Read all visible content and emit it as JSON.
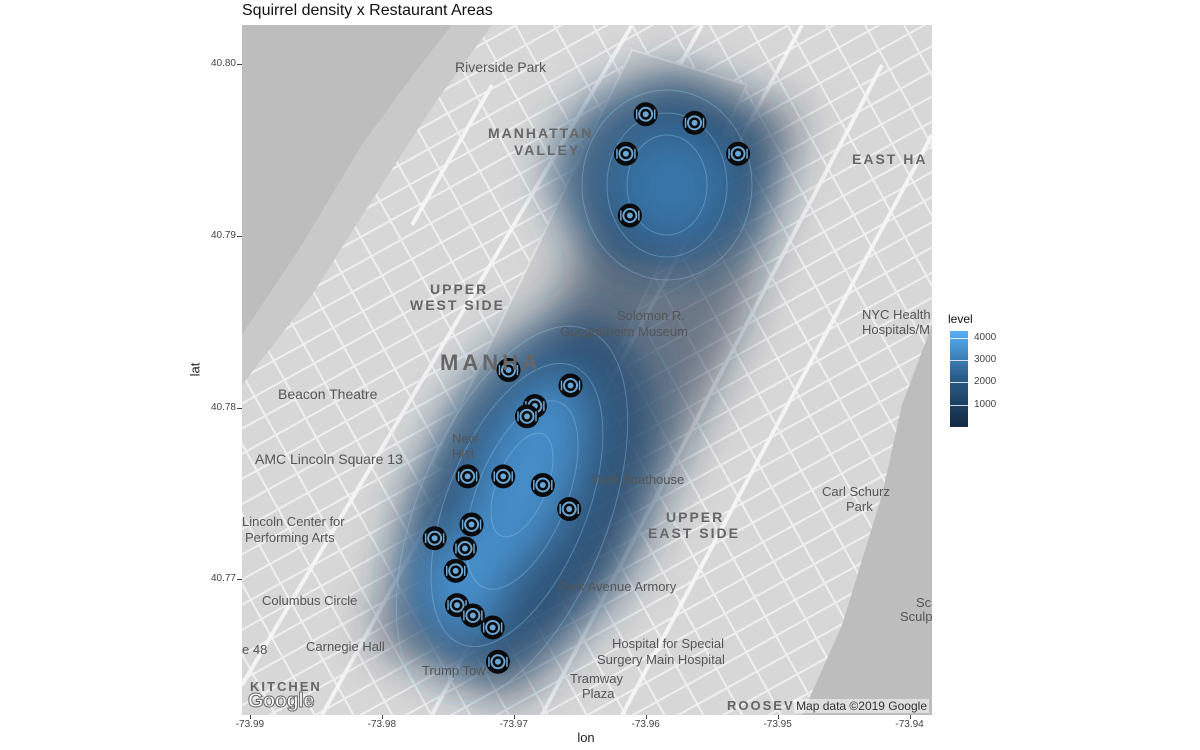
{
  "title": "Squirrel density x Restaurant Areas",
  "axes": {
    "xlabel": "lon",
    "ylabel": "lat",
    "xticks": [
      "-73.99",
      "-73.98",
      "-73.97",
      "-73.96",
      "-73.95",
      "-73.94"
    ],
    "yticks": [
      "40.80",
      "40.79",
      "40.78",
      "40.77"
    ]
  },
  "legend": {
    "title": "level",
    "ticks": [
      "4000",
      "3000",
      "2000",
      "1000"
    ],
    "colors": {
      "low": "#132b43",
      "high": "#56b1f7"
    }
  },
  "map": {
    "attribution": "Map data ©2019 Google",
    "logo": "Google",
    "labels": [
      {
        "text": "Riverside Park",
        "cls": "md"
      },
      {
        "text": "MANHATTAN",
        "cls": "nb"
      },
      {
        "text": "VALLEY",
        "cls": "nb"
      },
      {
        "text": "EAST HA",
        "cls": "nb"
      },
      {
        "text": "UPPER",
        "cls": "nb"
      },
      {
        "text": "WEST SIDE",
        "cls": "nb"
      },
      {
        "text": "MANHA",
        "cls": "big"
      },
      {
        "text": "Solomon R.",
        "cls": "md"
      },
      {
        "text": "Guggenheim Museum",
        "cls": "md"
      },
      {
        "text": "Beacon Theatre",
        "cls": "md"
      },
      {
        "text": "AMC Lincoln Square 13",
        "cls": "md"
      },
      {
        "text": "Lincoln Center for",
        "cls": "md"
      },
      {
        "text": "Performing Arts",
        "cls": "md"
      },
      {
        "text": "Columbus Circle",
        "cls": "md"
      },
      {
        "text": "Carnegie Hall",
        "cls": "md"
      },
      {
        "text": "KITCHEN",
        "cls": "nb"
      },
      {
        "text": "Web Boathouse",
        "cls": "md"
      },
      {
        "text": "UPPER",
        "cls": "nb"
      },
      {
        "text": "EAST SIDE",
        "cls": "nb"
      },
      {
        "text": "Park Avenue Armory",
        "cls": "md"
      },
      {
        "text": "Hospital for Special",
        "cls": "md"
      },
      {
        "text": "Surgery Main Hospital",
        "cls": "md"
      },
      {
        "text": "Tramway",
        "cls": "md"
      },
      {
        "text": "Plaza",
        "cls": "md"
      },
      {
        "text": "NYC Health",
        "cls": "md"
      },
      {
        "text": "Hospitals/M",
        "cls": "md"
      },
      {
        "text": "Carl Schurz",
        "cls": "md"
      },
      {
        "text": "Park",
        "cls": "md"
      },
      {
        "text": "ROOSEV",
        "cls": "nb"
      },
      {
        "text": "Sc",
        "cls": "md"
      },
      {
        "text": "Sculp",
        "cls": "md"
      },
      {
        "text": "e 48",
        "cls": "md"
      },
      {
        "text": "Trump Tow",
        "cls": "md"
      },
      {
        "text": "New",
        "cls": "md"
      },
      {
        "text": "Hist",
        "cls": "md"
      }
    ]
  },
  "chart_data": {
    "type": "density-map",
    "title": "Squirrel density x Restaurant Areas",
    "xlabel": "lon",
    "ylabel": "lat",
    "xlim": [
      -73.9906,
      -73.9383
    ],
    "ylim": [
      40.7621,
      40.8023
    ],
    "legend_range": [
      0,
      4300
    ],
    "restaurants": [
      {
        "lon": -73.96,
        "lat": 40.7971
      },
      {
        "lon": -73.9563,
        "lat": 40.7966
      },
      {
        "lon": -73.9615,
        "lat": 40.7948
      },
      {
        "lon": -73.953,
        "lat": 40.7948
      },
      {
        "lon": -73.9612,
        "lat": 40.7912
      },
      {
        "lon": -73.9704,
        "lat": 40.7822
      },
      {
        "lon": -73.9657,
        "lat": 40.7813
      },
      {
        "lon": -73.9684,
        "lat": 40.7801
      },
      {
        "lon": -73.969,
        "lat": 40.7795
      },
      {
        "lon": -73.9735,
        "lat": 40.776
      },
      {
        "lon": -73.9708,
        "lat": 40.776
      },
      {
        "lon": -73.9678,
        "lat": 40.7755
      },
      {
        "lon": -73.9658,
        "lat": 40.7741
      },
      {
        "lon": -73.9732,
        "lat": 40.7732
      },
      {
        "lon": -73.976,
        "lat": 40.7724
      },
      {
        "lon": -73.9737,
        "lat": 40.7718
      },
      {
        "lon": -73.9744,
        "lat": 40.7705
      },
      {
        "lon": -73.9743,
        "lat": 40.7685
      },
      {
        "lon": -73.9731,
        "lat": 40.7679
      },
      {
        "lon": -73.9716,
        "lat": 40.7672
      },
      {
        "lon": -73.9712,
        "lat": 40.7652
      }
    ],
    "density_peaks": [
      {
        "lon": -73.9707,
        "lat": 40.776,
        "level": 4300
      },
      {
        "lon": -73.96,
        "lat": 40.795,
        "level": 3600
      },
      {
        "lon": -73.974,
        "lat": 40.7705,
        "level": 3800
      }
    ]
  }
}
